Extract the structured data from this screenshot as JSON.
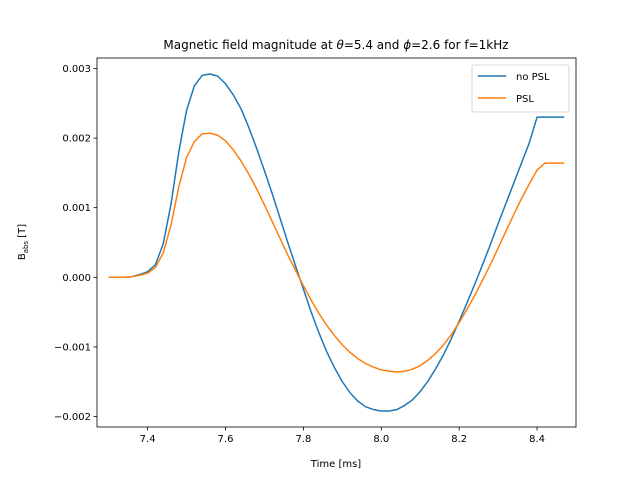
{
  "chart_data": {
    "type": "line",
    "title_parts": {
      "prefix": "Magnetic field magnitude at ",
      "theta_symbol": "θ",
      "theta_value": "=5.4 and ",
      "phi_symbol": "ϕ",
      "phi_value": "=2.6 for f=1kHz"
    },
    "xlabel": "Time [ms]",
    "ylabel_main": "B",
    "ylabel_sub": "abs",
    "ylabel_unit": " [T]",
    "xlim": [
      7.27,
      8.5
    ],
    "ylim": [
      -0.00215,
      0.00315
    ],
    "xticks": [
      7.4,
      7.6,
      7.8,
      8.0,
      8.2,
      8.4
    ],
    "xtick_labels": [
      "7.4",
      "7.6",
      "7.8",
      "8.0",
      "8.2",
      "8.4"
    ],
    "yticks": [
      -0.002,
      -0.001,
      0.0,
      0.001,
      0.002,
      0.003
    ],
    "ytick_labels": [
      "−0.002",
      "−0.001",
      "0.000",
      "0.001",
      "0.002",
      "0.003"
    ],
    "grid": false,
    "legend_position": "top-right",
    "series": [
      {
        "name": "no PSL",
        "color": "#1f77b4",
        "x": [
          7.3,
          7.32,
          7.34,
          7.36,
          7.38,
          7.4,
          7.42,
          7.44,
          7.46,
          7.48,
          7.5,
          7.52,
          7.54,
          7.56,
          7.58,
          7.6,
          7.62,
          7.64,
          7.66,
          7.68,
          7.7,
          7.72,
          7.74,
          7.76,
          7.78,
          7.8,
          7.82,
          7.84,
          7.86,
          7.88,
          7.9,
          7.92,
          7.94,
          7.96,
          7.98,
          8.0,
          8.02,
          8.04,
          8.06,
          8.08,
          8.1,
          8.12,
          8.14,
          8.16,
          8.18,
          8.2,
          8.22,
          8.24,
          8.26,
          8.28,
          8.3,
          8.32,
          8.34,
          8.36,
          8.38,
          8.4,
          8.42,
          8.44,
          8.46,
          8.47
        ],
        "y": [
          0.0,
          0.0,
          0.0,
          1e-05,
          4e-05,
          8e-05,
          0.00018,
          0.00048,
          0.00105,
          0.0018,
          0.0024,
          0.00275,
          0.0029,
          0.00292,
          0.00289,
          0.00278,
          0.00262,
          0.00242,
          0.00215,
          0.00185,
          0.00153,
          0.0012,
          0.00085,
          0.0005,
          0.00016,
          -0.00017,
          -0.0005,
          -0.0008,
          -0.00107,
          -0.0013,
          -0.0015,
          -0.00166,
          -0.00178,
          -0.00186,
          -0.0019,
          -0.00192,
          -0.00192,
          -0.0019,
          -0.00184,
          -0.00176,
          -0.00164,
          -0.00149,
          -0.00131,
          -0.00111,
          -0.00088,
          -0.00063,
          -0.00037,
          -0.0001,
          0.00018,
          0.00047,
          0.00077,
          0.00106,
          0.00135,
          0.00164,
          0.00193,
          0.0023,
          0.0023,
          0.0023,
          0.0023,
          0.0023
        ]
      },
      {
        "name": "PSL",
        "color": "#ff7f0e",
        "x": [
          7.3,
          7.32,
          7.34,
          7.36,
          7.38,
          7.4,
          7.42,
          7.44,
          7.46,
          7.48,
          7.5,
          7.52,
          7.54,
          7.56,
          7.58,
          7.6,
          7.62,
          7.64,
          7.66,
          7.68,
          7.7,
          7.72,
          7.74,
          7.76,
          7.78,
          7.8,
          7.82,
          7.84,
          7.86,
          7.88,
          7.9,
          7.92,
          7.94,
          7.96,
          7.98,
          8.0,
          8.02,
          8.04,
          8.06,
          8.08,
          8.1,
          8.12,
          8.14,
          8.16,
          8.18,
          8.2,
          8.22,
          8.24,
          8.26,
          8.28,
          8.3,
          8.32,
          8.34,
          8.36,
          8.38,
          8.4,
          8.42,
          8.44,
          8.46,
          8.47
        ],
        "y": [
          0.0,
          0.0,
          0.0,
          1e-05,
          3e-05,
          6e-05,
          0.00014,
          0.00035,
          0.00075,
          0.0013,
          0.00172,
          0.00195,
          0.00206,
          0.00207,
          0.00204,
          0.00196,
          0.00183,
          0.00167,
          0.00148,
          0.00127,
          0.00104,
          0.0008,
          0.00056,
          0.00032,
          0.0001,
          -0.00012,
          -0.00033,
          -0.00052,
          -0.00069,
          -0.00084,
          -0.00097,
          -0.00108,
          -0.00117,
          -0.00124,
          -0.00129,
          -0.00133,
          -0.00135,
          -0.00136,
          -0.00135,
          -0.00132,
          -0.00127,
          -0.00119,
          -0.00109,
          -0.00097,
          -0.00082,
          -0.00065,
          -0.00046,
          -0.00026,
          -4e-05,
          0.00018,
          0.00042,
          0.00066,
          0.0009,
          0.00113,
          0.00134,
          0.00154,
          0.00164,
          0.00164,
          0.00164,
          0.00164
        ]
      }
    ]
  }
}
